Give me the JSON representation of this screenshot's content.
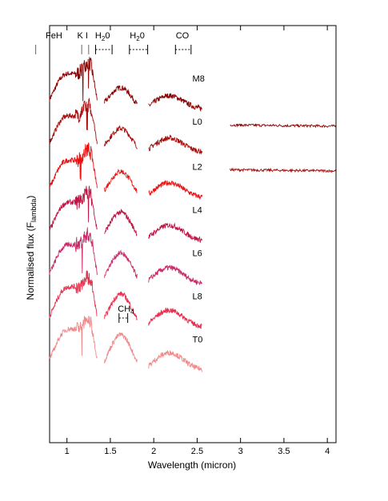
{
  "chart_data": {
    "type": "line",
    "title": "",
    "xlabel": "Wavelength (micron)",
    "ylabel": "Normalised flux (F",
    "ylabel_sub": "lambda",
    "ylabel_close": ")",
    "xlim": [
      0.8,
      4.1
    ],
    "x_ticks": [
      1,
      1.5,
      2,
      2.5,
      3,
      3.5,
      4
    ],
    "x_tick_labels": [
      "1",
      "1.5",
      "2",
      "2.5",
      "3",
      "3.5",
      "4"
    ],
    "grid": false,
    "features": [
      {
        "label": "FeH",
        "x_center": 0.85,
        "mark": "line",
        "x": [
          0.99
        ]
      },
      {
        "label": "K I",
        "x_center": 1.18,
        "mark": "lines",
        "x": [
          1.17,
          1.25
        ]
      },
      {
        "label": "H",
        "sub": "2",
        "suffix": "0",
        "x_center": 1.41,
        "mark": "bracket",
        "x": [
          1.33,
          1.52
        ]
      },
      {
        "label": "H",
        "sub": "2",
        "suffix": "0",
        "x_center": 1.81,
        "mark": "bracket",
        "x": [
          1.72,
          1.93
        ]
      },
      {
        "label": "CO",
        "x_center": 2.33,
        "mark": "bracket",
        "x": [
          2.25,
          2.43
        ]
      },
      {
        "label": "CH",
        "sub": "4",
        "suffix": "",
        "x_center": 1.68,
        "mark": "bracket",
        "x": [
          1.6,
          1.7
        ]
      }
    ],
    "series": [
      {
        "name": "M8",
        "color": "#8b0000",
        "offset": 0.0,
        "label_x": 2.28,
        "label_y": 0.8
      },
      {
        "name": "L0",
        "color": "#a80c0c",
        "offset": 1.0,
        "label_x": 2.28,
        "label_y": 0.55
      },
      {
        "name": "L2",
        "color": "#ef1010",
        "offset": 2.05,
        "label_x": 2.28,
        "label_y": 0.55
      },
      {
        "name": "L4",
        "color": "#c01545",
        "offset": 3.05,
        "label_x": 2.28,
        "label_y": 0.55
      },
      {
        "name": "L6",
        "color": "#cc2a6a",
        "offset": 4.05,
        "label_x": 2.28,
        "label_y": 0.55
      },
      {
        "name": "L8",
        "color": "#e8304e",
        "offset": 5.05,
        "label_x": 2.28,
        "label_y": 0.55
      },
      {
        "name": "T0",
        "color": "#f08a8a",
        "offset": 6.05,
        "label_x": 2.28,
        "label_y": 0.4
      }
    ]
  }
}
